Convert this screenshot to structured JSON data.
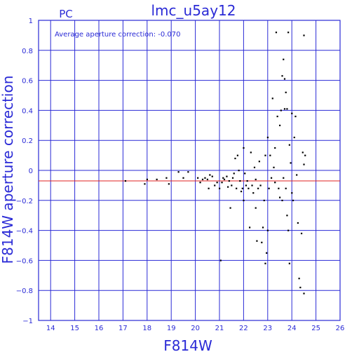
{
  "chart_data": {
    "type": "scatter",
    "title": "lmc_u5ay12",
    "corner_label": "PC",
    "annotation": "Average aperture correction: -0.070",
    "xlabel": "F814W",
    "ylabel": "F814W aperture correction",
    "xlim": [
      13.5,
      26
    ],
    "ylim": [
      -1,
      1
    ],
    "xticks": [
      14,
      15,
      16,
      17,
      18,
      19,
      20,
      21,
      22,
      23,
      24,
      25,
      26
    ],
    "yticks": [
      -1,
      -0.8,
      -0.6,
      -0.4,
      -0.2,
      0,
      0.2,
      0.4,
      0.6,
      0.8,
      1
    ],
    "ytick_labels": [
      "−1",
      "−0.8",
      "−0.6",
      "−0.4",
      "−0.2",
      "0",
      "0.2",
      "0.4",
      "0.6",
      "0.8",
      "1"
    ],
    "grid": true,
    "reference_line": {
      "y": -0.07,
      "color": "#e02020"
    },
    "colors": {
      "axes": "#2a2ad6",
      "points": "#000000"
    },
    "points": [
      [
        17.1,
        -0.07
      ],
      [
        17.9,
        -0.09
      ],
      [
        18.0,
        -0.06
      ],
      [
        18.4,
        -0.06
      ],
      [
        18.8,
        -0.05
      ],
      [
        18.9,
        -0.09
      ],
      [
        19.3,
        -0.01
      ],
      [
        19.5,
        -0.05
      ],
      [
        19.7,
        -0.01
      ],
      [
        20.1,
        -0.05
      ],
      [
        20.2,
        -0.08
      ],
      [
        20.3,
        -0.06
      ],
      [
        20.4,
        -0.05
      ],
      [
        20.5,
        -0.06
      ],
      [
        20.55,
        -0.12
      ],
      [
        20.6,
        -0.03
      ],
      [
        20.7,
        -0.04
      ],
      [
        20.8,
        -0.1
      ],
      [
        20.9,
        -0.08
      ],
      [
        21.0,
        -0.12
      ],
      [
        21.05,
        -0.6
      ],
      [
        21.1,
        -0.08
      ],
      [
        21.15,
        -0.05
      ],
      [
        21.2,
        -0.06
      ],
      [
        21.3,
        -0.04
      ],
      [
        21.35,
        -0.11
      ],
      [
        21.4,
        -0.07
      ],
      [
        21.45,
        -0.25
      ],
      [
        21.5,
        -0.1
      ],
      [
        21.55,
        -0.05
      ],
      [
        21.6,
        -0.02
      ],
      [
        21.65,
        0.08
      ],
      [
        21.7,
        -0.12
      ],
      [
        21.75,
        0.1
      ],
      [
        21.8,
        0.0
      ],
      [
        21.85,
        -0.07
      ],
      [
        21.9,
        -0.14
      ],
      [
        21.95,
        -0.12
      ],
      [
        22.0,
        0.15
      ],
      [
        22.0,
        -0.2
      ],
      [
        22.05,
        -0.02
      ],
      [
        22.1,
        -0.1
      ],
      [
        22.15,
        -0.07
      ],
      [
        22.2,
        -0.12
      ],
      [
        22.25,
        -0.38
      ],
      [
        22.3,
        0.12
      ],
      [
        22.35,
        -0.1
      ],
      [
        22.4,
        -0.15
      ],
      [
        22.45,
        0.02
      ],
      [
        22.5,
        -0.06
      ],
      [
        22.5,
        -0.25
      ],
      [
        22.55,
        -0.47
      ],
      [
        22.6,
        -0.12
      ],
      [
        22.65,
        0.06
      ],
      [
        22.7,
        -0.1
      ],
      [
        22.75,
        -0.48
      ],
      [
        22.8,
        -0.38
      ],
      [
        22.85,
        -0.2
      ],
      [
        22.9,
        -0.62
      ],
      [
        22.9,
        0.1
      ],
      [
        22.95,
        -0.55
      ],
      [
        23.0,
        -0.4
      ],
      [
        23.0,
        0.22
      ],
      [
        23.05,
        -0.12
      ],
      [
        23.1,
        0.1
      ],
      [
        23.15,
        -0.05
      ],
      [
        23.2,
        0.48
      ],
      [
        23.25,
        0.02
      ],
      [
        23.3,
        -0.08
      ],
      [
        23.3,
        0.15
      ],
      [
        23.35,
        0.92
      ],
      [
        23.4,
        0.36
      ],
      [
        23.45,
        -0.12
      ],
      [
        23.5,
        0.3
      ],
      [
        23.5,
        -0.18
      ],
      [
        23.55,
        0.4
      ],
      [
        23.6,
        -0.2
      ],
      [
        23.6,
        0.63
      ],
      [
        23.65,
        0.74
      ],
      [
        23.65,
        -0.05
      ],
      [
        23.7,
        0.41
      ],
      [
        23.7,
        0.61
      ],
      [
        23.75,
        0.52
      ],
      [
        23.75,
        -0.12
      ],
      [
        23.8,
        0.41
      ],
      [
        23.8,
        -0.3
      ],
      [
        23.85,
        0.92
      ],
      [
        23.85,
        -0.4
      ],
      [
        23.9,
        0.17
      ],
      [
        23.9,
        -0.62
      ],
      [
        23.95,
        0.05
      ],
      [
        24.0,
        0.38
      ],
      [
        24.0,
        -0.15
      ],
      [
        24.05,
        -0.2
      ],
      [
        24.1,
        0.22
      ],
      [
        24.15,
        0.36
      ],
      [
        24.2,
        -0.03
      ],
      [
        24.25,
        -0.35
      ],
      [
        24.3,
        -0.72
      ],
      [
        24.35,
        -0.78
      ],
      [
        24.4,
        -0.42
      ],
      [
        24.45,
        0.12
      ],
      [
        24.5,
        0.04
      ],
      [
        24.5,
        0.9
      ],
      [
        24.5,
        -0.82
      ],
      [
        24.55,
        0.1
      ]
    ]
  }
}
